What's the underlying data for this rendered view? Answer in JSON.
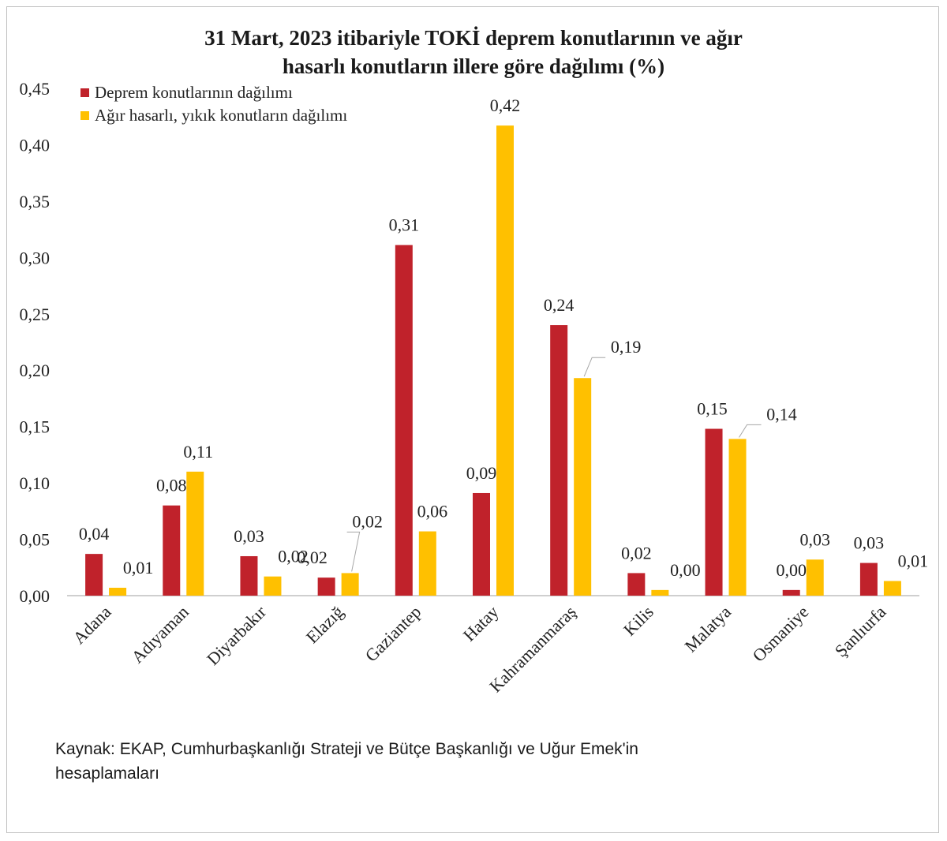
{
  "chart_data": {
    "type": "bar",
    "title_line1": "31 Mart, 2023 itibariyle TOKİ deprem konutlarının  ve ağır",
    "title_line2": "hasarlı konutların  illere göre dağılımı  (%)",
    "categories": [
      "Adana",
      "Adıyaman",
      "Diyarbakır",
      "Elazığ",
      "Gaziantep",
      "Hatay",
      "Kahramanmaraş",
      "Kilis",
      "Malatya",
      "Osmaniye",
      "Şanlıurfa"
    ],
    "series": [
      {
        "name": "Deprem konutlarının dağılımı",
        "color": "#c0222b",
        "values": [
          0.037,
          0.08,
          0.035,
          0.016,
          0.311,
          0.091,
          0.24,
          0.02,
          0.148,
          0.005,
          0.029
        ],
        "labels": [
          "0,04",
          "0,08",
          "0,03",
          "0,02",
          "0,31",
          "0,09",
          "0,24",
          "0,02",
          "0,15",
          "0,00",
          "0,03"
        ]
      },
      {
        "name": "Ağır hasarlı, yıkık konutların dağılımı",
        "color": "#ffc000",
        "values": [
          0.007,
          0.11,
          0.017,
          0.02,
          0.057,
          0.417,
          0.193,
          0.005,
          0.139,
          0.032,
          0.013
        ],
        "labels": [
          "0,01",
          "0,11",
          "0,02",
          "0,02",
          "0,06",
          "0,42",
          "0,19",
          "0,00",
          "0,14",
          "0,03",
          "0,01"
        ]
      }
    ],
    "ylim": [
      0,
      0.45
    ],
    "yticks": [
      "0,00",
      "0,05",
      "0,10",
      "0,15",
      "0,20",
      "0,25",
      "0,30",
      "0,35",
      "0,40",
      "0,45"
    ],
    "xlabel": "",
    "ylabel": "",
    "legend_position": "top-left",
    "grid": false
  },
  "source_line1": "Kaynak: EKAP, Cumhurbaşkanlığı Strateji ve Bütçe Başkanlığı  ve Uğur Emek'in",
  "source_line2": "hesaplamaları"
}
